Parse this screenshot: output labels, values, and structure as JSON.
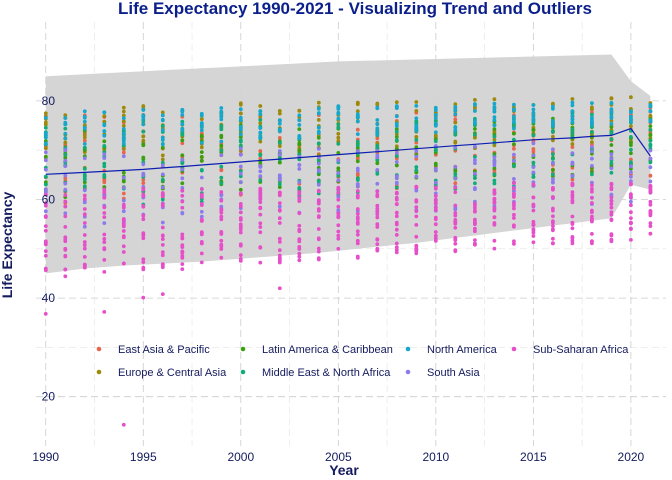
{
  "chart_data": {
    "type": "scatter",
    "title": "Life Expectancy 1990-2021 - Visualizing Trend and Outliers",
    "xlabel": "Year",
    "ylabel": "Life Expectancy",
    "xlim": [
      1989.5,
      2021.8
    ],
    "ylim": [
      10,
      96
    ],
    "x_ticks": [
      1990,
      1995,
      2000,
      2005,
      2010,
      2015,
      2020
    ],
    "y_ticks": [
      20,
      40,
      60,
      80
    ],
    "grid": true,
    "legend_position": "inside-bottom",
    "series": [
      {
        "name": "East Asia & Pacific",
        "color": "#e8664f",
        "low": 59,
        "high": 77
      },
      {
        "name": "Europe & Central Asia",
        "color": "#9d8a0c",
        "low": 66,
        "high": 79
      },
      {
        "name": "Latin America & Caribbean",
        "color": "#3aa00e",
        "low": 60,
        "high": 75
      },
      {
        "name": "Middle East & North Africa",
        "color": "#10ad7a",
        "low": 58,
        "high": 76
      },
      {
        "name": "North America",
        "color": "#14a8cc",
        "low": 70,
        "high": 78
      },
      {
        "name": "South Asia",
        "color": "#8c7bec",
        "low": 54,
        "high": 70
      },
      {
        "name": "Sub-Saharan Africa",
        "color": "#e64fc9",
        "low": 44,
        "high": 62
      }
    ],
    "trend_line": {
      "color": "#0d1fb3",
      "x": [
        1990,
        1991,
        1992,
        1993,
        1994,
        1995,
        1996,
        1997,
        1998,
        1999,
        2000,
        2001,
        2002,
        2003,
        2004,
        2005,
        2006,
        2007,
        2008,
        2009,
        2010,
        2011,
        2012,
        2013,
        2014,
        2015,
        2016,
        2017,
        2018,
        2019,
        2020,
        2021
      ],
      "y": [
        65.1,
        65.3,
        65.5,
        65.7,
        65.9,
        66.1,
        66.4,
        66.7,
        67.0,
        67.3,
        67.6,
        67.9,
        68.2,
        68.5,
        68.8,
        69.1,
        69.4,
        69.7,
        70.0,
        70.3,
        70.6,
        70.9,
        71.2,
        71.5,
        71.8,
        72.1,
        72.3,
        72.5,
        72.8,
        73.0,
        74.4,
        68.8
      ]
    },
    "band": {
      "color": "#d3d3d3",
      "upper": [
        85.0,
        85.2,
        85.4,
        85.6,
        85.8,
        86.0,
        86.2,
        86.4,
        86.6,
        86.8,
        87.0,
        87.2,
        87.4,
        87.6,
        87.8,
        88.0,
        88.1,
        88.2,
        88.3,
        88.4,
        88.5,
        88.6,
        88.7,
        88.8,
        88.9,
        89.0,
        89.1,
        89.2,
        89.3,
        89.4,
        84.0,
        81.0
      ],
      "lower": [
        45.0,
        45.5,
        46.0,
        46.3,
        46.6,
        46.8,
        47.0,
        47.2,
        47.4,
        47.7,
        48.0,
        48.3,
        48.6,
        48.9,
        49.2,
        49.6,
        50.0,
        50.4,
        50.8,
        51.2,
        51.7,
        52.2,
        52.7,
        53.2,
        53.7,
        54.2,
        54.7,
        55.2,
        55.7,
        56.2,
        63.0,
        62.0
      ]
    },
    "outliers": [
      {
        "x": 1990,
        "y": 36.8
      },
      {
        "x": 1993,
        "y": 37.2
      },
      {
        "x": 1994,
        "y": 14.3
      },
      {
        "x": 1995,
        "y": 40.1
      },
      {
        "x": 1996,
        "y": 40.8
      },
      {
        "x": 2002,
        "y": 42.0
      }
    ]
  }
}
